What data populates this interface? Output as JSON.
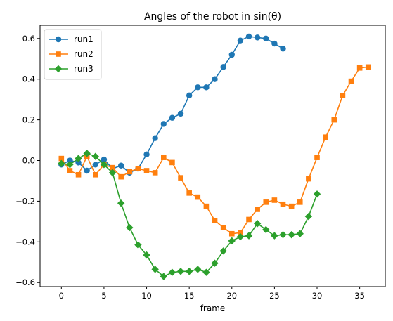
{
  "chart_data": {
    "type": "line",
    "title": "Angles of the robot in sin(θ)",
    "xlabel": "frame",
    "ylabel": "",
    "xlim": [
      -2.5,
      38.0
    ],
    "ylim": [
      -0.62,
      0.665
    ],
    "xticks": [
      0,
      5,
      10,
      15,
      20,
      25,
      30,
      35
    ],
    "yticks": [
      -0.6,
      -0.4,
      -0.2,
      0.0,
      0.2,
      0.4,
      0.6
    ],
    "ytick_labels": [
      "−0.6",
      "−0.4",
      "−0.2",
      "0.0",
      "0.2",
      "0.4",
      "0.6"
    ],
    "grid": false,
    "legend": "top-left",
    "series": [
      {
        "name": "run1",
        "color": "#1f77b4",
        "marker": "circle",
        "x": [
          0,
          1,
          2,
          3,
          4,
          5,
          6,
          7,
          8,
          9,
          10,
          11,
          12,
          13,
          14,
          15,
          16,
          17,
          18,
          19,
          20,
          21,
          22,
          23,
          24,
          25,
          26
        ],
        "y": [
          -0.02,
          0.0,
          -0.01,
          -0.05,
          -0.02,
          0.005,
          -0.04,
          -0.025,
          -0.06,
          -0.04,
          0.03,
          0.11,
          0.18,
          0.21,
          0.23,
          0.32,
          0.36,
          0.36,
          0.4,
          0.46,
          0.52,
          0.59,
          0.61,
          0.605,
          0.6,
          0.575,
          0.55
        ]
      },
      {
        "name": "run2",
        "color": "#ff7f0e",
        "marker": "square",
        "x": [
          0,
          1,
          2,
          3,
          4,
          5,
          6,
          7,
          8,
          9,
          10,
          11,
          12,
          13,
          14,
          15,
          16,
          17,
          18,
          19,
          20,
          21,
          22,
          23,
          24,
          25,
          26,
          27,
          28,
          29,
          30,
          31,
          32,
          33,
          34,
          35,
          36
        ],
        "y": [
          0.01,
          -0.05,
          -0.07,
          0.02,
          -0.07,
          -0.02,
          -0.035,
          -0.08,
          -0.055,
          -0.04,
          -0.05,
          -0.06,
          0.015,
          -0.01,
          -0.085,
          -0.16,
          -0.18,
          -0.225,
          -0.295,
          -0.33,
          -0.36,
          -0.355,
          -0.29,
          -0.24,
          -0.205,
          -0.195,
          -0.215,
          -0.225,
          -0.205,
          -0.09,
          0.015,
          0.115,
          0.2,
          0.32,
          0.39,
          0.455,
          0.46
        ]
      },
      {
        "name": "run3",
        "color": "#2ca02c",
        "marker": "diamond",
        "x": [
          0,
          1,
          2,
          3,
          4,
          5,
          6,
          7,
          8,
          9,
          10,
          11,
          12,
          13,
          14,
          15,
          16,
          17,
          18,
          19,
          20,
          21,
          22,
          23,
          24,
          25,
          26,
          27,
          28,
          29,
          30
        ],
        "y": [
          -0.015,
          -0.02,
          0.01,
          0.035,
          0.02,
          -0.02,
          -0.06,
          -0.21,
          -0.33,
          -0.415,
          -0.465,
          -0.535,
          -0.57,
          -0.55,
          -0.545,
          -0.545,
          -0.535,
          -0.55,
          -0.505,
          -0.445,
          -0.395,
          -0.375,
          -0.37,
          -0.31,
          -0.34,
          -0.37,
          -0.365,
          -0.365,
          -0.36,
          -0.275,
          -0.165
        ]
      }
    ]
  }
}
